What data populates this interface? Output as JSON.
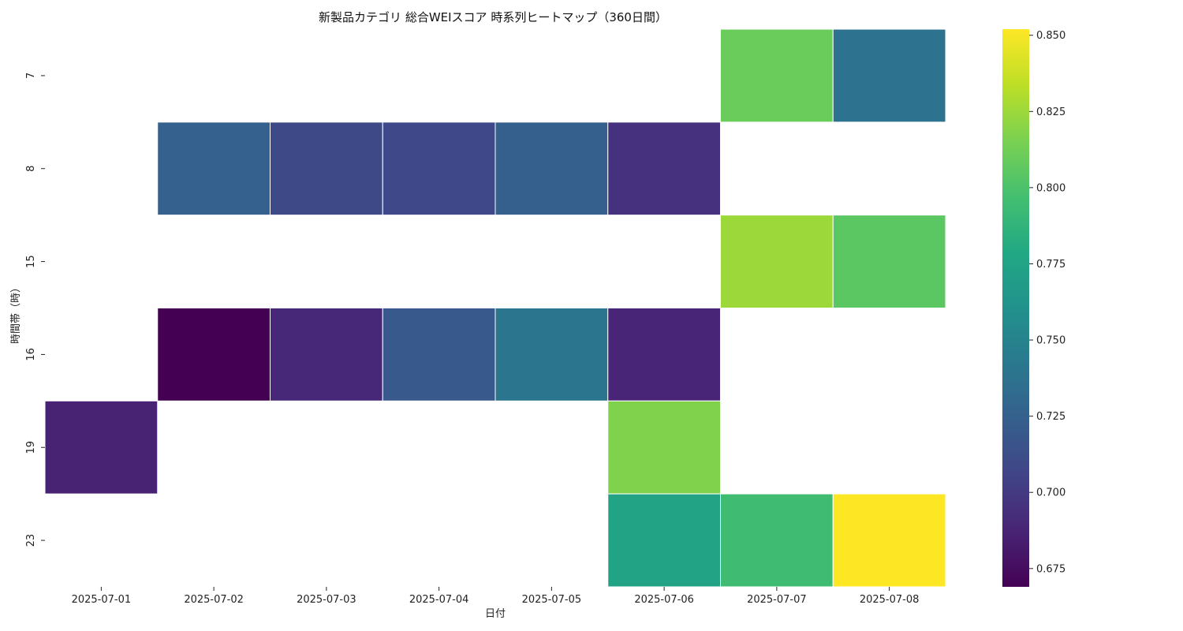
{
  "chart_data": {
    "type": "heatmap",
    "title": "新製品カテゴリ 総合WEIスコア 時系列ヒートマップ（360日間）",
    "xlabel": "日付",
    "ylabel": "時間帯（時）",
    "x_categories": [
      "2025-07-01",
      "2025-07-02",
      "2025-07-03",
      "2025-07-04",
      "2025-07-05",
      "2025-07-06",
      "2025-07-07",
      "2025-07-08"
    ],
    "y_categories": [
      "7",
      "8",
      "15",
      "16",
      "19",
      "23"
    ],
    "values": [
      [
        null,
        null,
        null,
        null,
        null,
        null,
        0.81,
        0.738
      ],
      [
        null,
        0.725,
        0.71,
        0.708,
        0.724,
        0.695,
        null,
        null
      ],
      [
        null,
        null,
        null,
        null,
        null,
        null,
        0.825,
        0.805
      ],
      [
        null,
        0.669,
        0.689,
        0.72,
        0.74,
        0.688,
        null,
        null
      ],
      [
        0.687,
        null,
        null,
        null,
        null,
        0.817,
        null,
        null
      ],
      [
        null,
        null,
        null,
        null,
        null,
        0.775,
        0.795,
        0.852
      ]
    ],
    "colormap": "viridis",
    "colorbar": {
      "min": 0.669,
      "max": 0.852,
      "ticks": [
        "0.675",
        "0.700",
        "0.725",
        "0.750",
        "0.775",
        "0.800",
        "0.825",
        "0.850"
      ]
    },
    "missing_color": "#ffffff",
    "grid": false,
    "legend": "colorbar-right"
  }
}
